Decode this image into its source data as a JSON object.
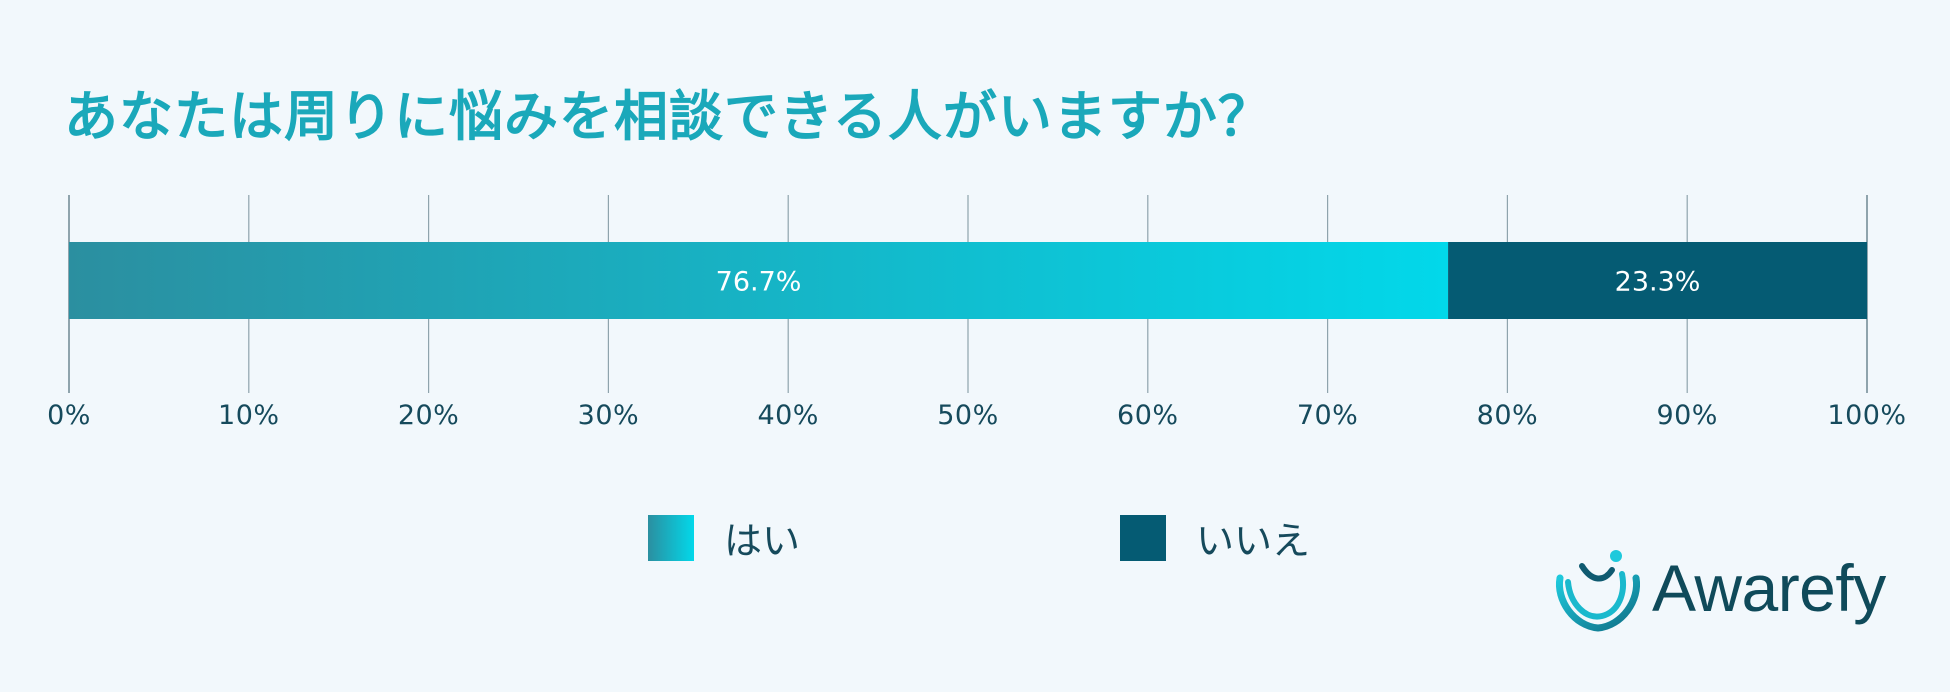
{
  "title": "あなたは周りに悩みを相談できる人がいますか？",
  "chart_data": {
    "type": "bar",
    "orientation": "horizontal",
    "stacked": true,
    "normalized": true,
    "title": "あなたは周りに悩みを相談できる人がいますか？",
    "xlim": [
      0,
      100
    ],
    "x_ticks": [
      "0%",
      "10%",
      "20%",
      "30%",
      "40%",
      "50%",
      "60%",
      "70%",
      "80%",
      "90%",
      "100%"
    ],
    "grid": true,
    "legend_position": "bottom",
    "series": [
      {
        "name": "はい",
        "value": 76.7,
        "label": "76.7%",
        "color_start": "#2b8fa0",
        "color_end": "#02d8ea"
      },
      {
        "name": "いいえ",
        "value": 23.3,
        "label": "23.3%",
        "color": "#055b73"
      }
    ]
  },
  "logo": {
    "text": "Awarefy"
  },
  "colors": {
    "title": "#1aa8ba",
    "text": "#164a5c",
    "grid": "#8fa4ad",
    "background": "#f2f8fc"
  }
}
